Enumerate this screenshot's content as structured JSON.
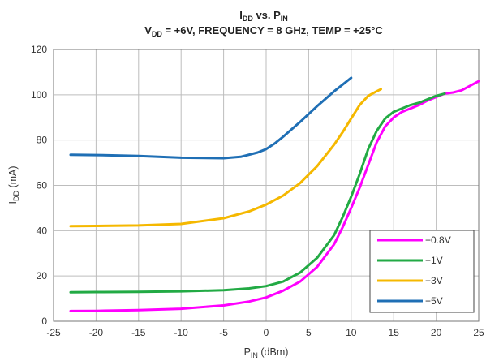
{
  "chart_data": {
    "type": "line",
    "title": {
      "line1": {
        "main": "I",
        "sub": "DD",
        "mid": " vs. P",
        "sub2": "IN"
      },
      "line2": {
        "main": "V",
        "sub": "DD",
        "rest": " = +6V, FREQUENCY = 8 GHz, TEMP = +25°C"
      }
    },
    "xlabel": {
      "main": "P",
      "sub": "IN",
      "rest": " (dBm)"
    },
    "ylabel": {
      "main": "I",
      "sub": "DD",
      "rest": " (mA)"
    },
    "xlim": [
      -25,
      25
    ],
    "ylim": [
      0,
      120
    ],
    "xticks": [
      -25,
      -20,
      -15,
      -10,
      -5,
      0,
      5,
      10,
      15,
      20,
      25
    ],
    "yticks": [
      0,
      20,
      40,
      60,
      80,
      100,
      120
    ],
    "grid": true,
    "legend_position": "bottom-right",
    "series": [
      {
        "name": "+0.8V",
        "color": "#ff00ff",
        "x": [
          -23,
          -20,
          -15,
          -10,
          -5,
          -2,
          0,
          2,
          4,
          6,
          8,
          9,
          10,
          11,
          12,
          13,
          14,
          15,
          16,
          17,
          18,
          19,
          20,
          21,
          22,
          23,
          24,
          25
        ],
        "y": [
          4.5,
          4.6,
          4.9,
          5.5,
          7,
          8.7,
          10.5,
          13.5,
          17.5,
          24,
          34,
          41.5,
          50,
          59,
          69,
          79,
          86,
          90,
          92.5,
          94,
          95.5,
          97.5,
          99,
          100.5,
          101,
          102,
          104,
          106
        ]
      },
      {
        "name": "+1V",
        "color": "#22aa44",
        "x": [
          -23,
          -20,
          -15,
          -10,
          -5,
          -2,
          0,
          2,
          4,
          6,
          8,
          9,
          10,
          11,
          12,
          13,
          14,
          15,
          16,
          17,
          18,
          19,
          20,
          21
        ],
        "y": [
          12.8,
          12.9,
          13.0,
          13.2,
          13.7,
          14.5,
          15.5,
          17.5,
          21.5,
          28,
          38,
          46,
          55,
          65,
          76,
          84,
          89.5,
          92.5,
          94,
          95.5,
          96.5,
          98,
          99.5,
          100.5
        ]
      },
      {
        "name": "+3V",
        "color": "#f5b800",
        "x": [
          -23,
          -20,
          -15,
          -10,
          -5,
          -2,
          0,
          2,
          4,
          6,
          8,
          9,
          10,
          11,
          12,
          13,
          13.5
        ],
        "y": [
          42,
          42.1,
          42.3,
          43,
          45.5,
          48.5,
          51.5,
          55.5,
          61,
          68.5,
          78,
          83.5,
          89.5,
          95.5,
          99.5,
          101.5,
          102.5
        ]
      },
      {
        "name": "+5V",
        "color": "#1f6fb5",
        "x": [
          -23,
          -20,
          -15,
          -10,
          -5,
          -3,
          -1,
          0,
          1,
          2,
          4,
          6,
          8,
          10
        ],
        "y": [
          73.5,
          73.4,
          73,
          72.2,
          72,
          72.6,
          74.5,
          76,
          78.5,
          81.5,
          88,
          95,
          101.5,
          107.5
        ]
      }
    ]
  }
}
